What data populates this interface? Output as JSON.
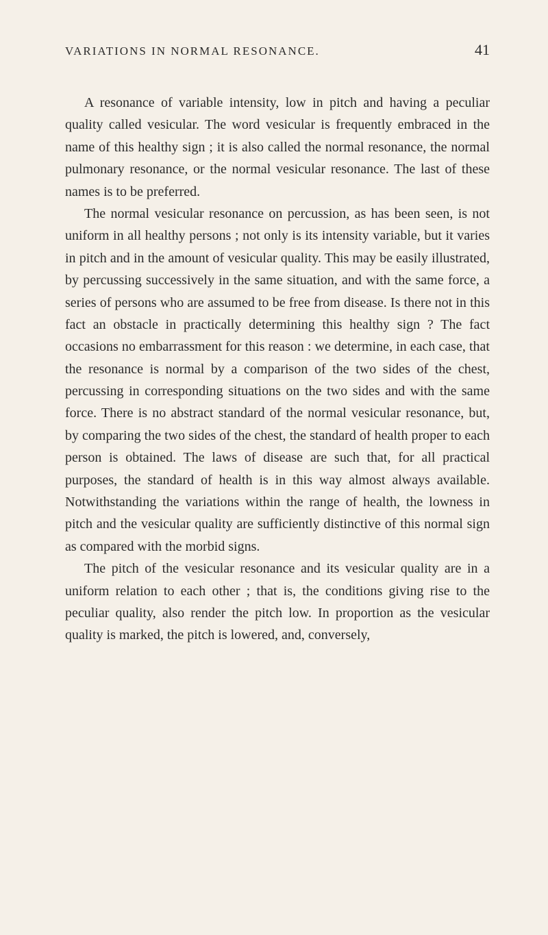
{
  "page": {
    "header_title": "VARIATIONS IN NORMAL RESONANCE.",
    "page_number": "41",
    "background_color": "#f5f0e8",
    "text_color": "#2a2a2a",
    "body_font_size": 20,
    "header_font_size": 17,
    "page_number_font_size": 22,
    "line_height": 1.62
  },
  "paragraphs": {
    "p1": "A resonance of variable intensity, low in pitch and having a peculiar quality called vesicular. The word vesicular is frequently embraced in the name of this healthy sign ; it is also called the normal resonance, the normal pulmonary resonance, or the normal vesicular resonance. The last of these names is to be preferred.",
    "p2": "The normal vesicular resonance on percussion, as has been seen, is not uniform in all healthy persons ; not only is its intensity variable, but it varies in pitch and in the amount of vesicular quality. This may be easily illustrated, by percussing successively in the same situation, and with the same force, a series of persons who are assumed to be free from disease. Is there not in this fact an obstacle in practically determining this healthy sign ? The fact occasions no embarrassment for this reason : we determine, in each case, that the resonance is normal by a comparison of the two sides of the chest, percussing in corresponding situations on the two sides and with the same force. There is no abstract standard of the normal vesicular resonance, but, by comparing the two sides of the chest, the standard of health proper to each person is obtained. The laws of disease are such that, for all practical purposes, the standard of health is in this way almost always available. Notwithstanding the variations within the range of health, the lowness in pitch and the vesicular quality are sufficiently distinctive of this normal sign as compared with the morbid signs.",
    "p3": "The pitch of the vesicular resonance and its vesicular quality are in a uniform relation to each other ; that is, the conditions giving rise to the peculiar quality, also render the pitch low. In proportion as the vesicular quality is marked, the pitch is lowered, and, conversely,"
  }
}
